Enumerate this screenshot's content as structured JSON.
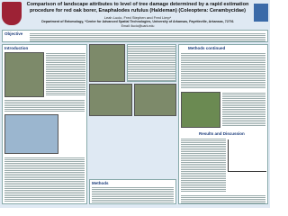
{
  "header": {
    "title": "Comparison of landscape attributes to level of tree damage determined by a rapid estimation procedure for red oak borer, Enaphalodes rufulus (Haldeman) (Coleoptera: Cerambycidae)",
    "authors": "Leah Lucio, Fred Stephen and Fred Limp*",
    "affiliation": "Department of Entomology, *Center for Advanced Spatial Technologies, University of Arkansas, Fayetteville, Arkansas, 72701",
    "email": "Email: llucio@uark.edu"
  },
  "sections": [
    {
      "heading": "Objective"
    },
    {
      "heading": "Introduction"
    },
    {
      "heading": "Methods continued"
    },
    {
      "heading": "Methods"
    },
    {
      "heading": "Results and Discussion"
    }
  ]
}
